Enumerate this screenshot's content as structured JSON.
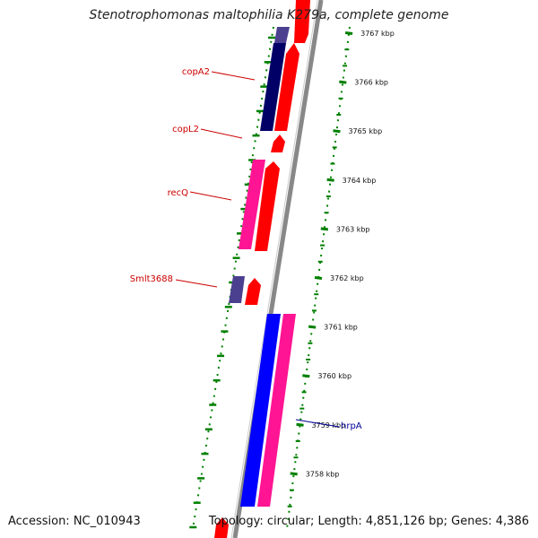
{
  "title": "Stenotrophomonas maltophilia K279a, complete genome",
  "accession": "Accession: NC_010943",
  "summary": "Topology: circular; Length: 4,851,126 bp; Genes: 4,386",
  "colors": {
    "label_red": "#cc0000",
    "label_blue": "#000099",
    "navy": "#000066",
    "red": "#ff0000",
    "pink": "#ff1493",
    "blue": "#0000ff",
    "slate": "#4b3f8f",
    "backbone": "#888888",
    "tick_green": "#008000"
  },
  "ticks": [
    {
      "label": "3767 kbp"
    },
    {
      "label": "3766 kbp"
    },
    {
      "label": "3765 kbp"
    },
    {
      "label": "3764 kbp"
    },
    {
      "label": "3763 kbp"
    },
    {
      "label": "3762 kbp"
    },
    {
      "label": "3761 kbp"
    },
    {
      "label": "3760 kbp"
    },
    {
      "label": "3759 kbp"
    },
    {
      "label": "3758 kbp"
    }
  ],
  "gene_labels": [
    {
      "name": "copA2"
    },
    {
      "name": "copL2"
    },
    {
      "name": "recQ"
    },
    {
      "name": "Smlt3688"
    },
    {
      "name": "hrpA"
    }
  ]
}
